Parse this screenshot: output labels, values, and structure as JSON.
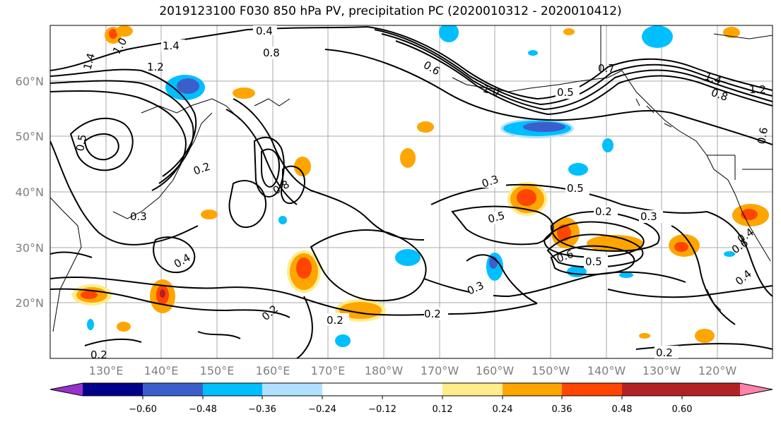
{
  "title": "2019123100 F030 850 hPa PV, precipitation PC (2020010312 - 2020010412)",
  "lat_labels": [
    "60°N",
    "50°N",
    "40°N",
    "30°N",
    "20°N"
  ],
  "lon_labels": [
    "130°E",
    "140°E",
    "150°E",
    "160°E",
    "170°E",
    "180°W",
    "170°W",
    "160°W",
    "150°W",
    "140°W",
    "130°W",
    "120°W"
  ],
  "contour_labels": [
    "0.4",
    "1.4",
    "0.8",
    "1.2",
    "1.0",
    "1.4",
    "0.6",
    "0.5",
    "1.0",
    "0.7",
    "1.4",
    "1.2",
    "0.5",
    "0.2",
    "0.8",
    "0.3",
    "0.3",
    "0.5",
    "0.2",
    "0.3",
    "0.5",
    "0.6",
    "0.3",
    "0.2",
    "0.2",
    "0.5",
    "0.4",
    "0.2",
    "0.4",
    "0.6",
    "0.2",
    "0.2",
    "0.6",
    "0.8",
    "0.4"
  ],
  "colorbar": {
    "ticks": [
      "−0.60",
      "−0.48",
      "−0.36",
      "−0.24",
      "−0.12",
      "0.12",
      "0.24",
      "0.36",
      "0.48",
      "0.60"
    ],
    "colors": [
      "#9932cc",
      "#00008b",
      "#3a5fcd",
      "#00bfff",
      "#b0e2ff",
      "#ffffff",
      "#ffec8b",
      "#ffa500",
      "#ff4500",
      "#b22222",
      "#ff82ab"
    ]
  }
}
